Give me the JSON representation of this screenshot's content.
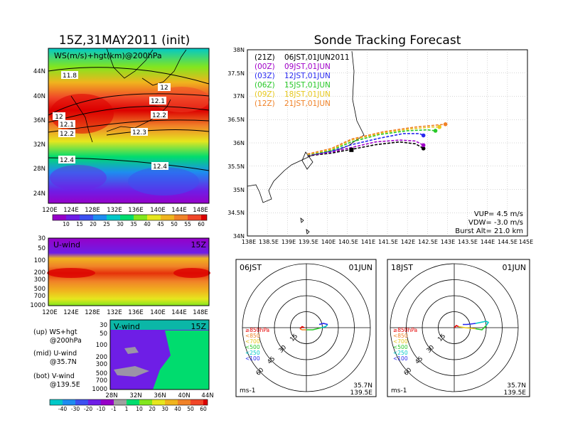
{
  "left_title": "15Z,31MAY2011 (init)",
  "right_title": "Sonde Tracking Forecast",
  "colors": {
    "c1": "#9600c8",
    "c2": "#6e1ee6",
    "c3": "#3c50f0",
    "c4": "#1e8cf0",
    "c5": "#00c8c8",
    "c6": "#00dc6e",
    "c7": "#82e61e",
    "c8": "#e6e61e",
    "c9": "#f0b41e",
    "c10": "#f08228",
    "c11": "#f04628",
    "c12": "#dc0000",
    "c13": "#b40000"
  },
  "ws_panel": {
    "label": "WS(m/s)+hgt(km)@200hPa",
    "lat_ticks": [
      "44N",
      "40N",
      "36N",
      "32N",
      "28N",
      "24N"
    ],
    "lon_ticks": [
      "120E",
      "124E",
      "128E",
      "132E",
      "136E",
      "140E",
      "144E",
      "148E"
    ],
    "height_labels": [
      "11.8",
      "12",
      "12.1",
      "12.1",
      "12.2",
      "12.2",
      "12",
      "12.3",
      "12.4",
      "12.4"
    ],
    "colorbar_ticks": [
      "10",
      "15",
      "20",
      "25",
      "30",
      "35",
      "40",
      "45",
      "50",
      "55",
      "60"
    ]
  },
  "u_panel": {
    "label": "U-wind",
    "time": "15Z",
    "p_ticks": [
      "30",
      "50",
      "100",
      "200",
      "300",
      "500",
      "700",
      "1000"
    ],
    "lon_ticks": [
      "120E",
      "124E",
      "128E",
      "132E",
      "136E",
      "140E",
      "144E",
      "148E"
    ]
  },
  "v_panel": {
    "label": "V-wind",
    "time": "15Z",
    "p_ticks": [
      "30",
      "50",
      "100",
      "200",
      "300",
      "500",
      "700",
      "1000"
    ],
    "lat_ticks": [
      "28N",
      "32N",
      "36N",
      "40N",
      "44N"
    ],
    "colorbar_ticks": [
      "-40",
      "-30",
      "-20",
      "-10",
      "-1",
      "1",
      "10",
      "20",
      "30",
      "40",
      "50",
      "60"
    ]
  },
  "legend_notes": {
    "up1": "(up) WS+hgt",
    "up2": "@200hPa",
    "mid1": "(mid) U-wind",
    "mid2": "@35.7N",
    "bot1": "(bot) V-wind",
    "bot2": "@139.5E"
  },
  "track_panel": {
    "legend": [
      {
        "z": "(21Z)",
        "jst": "06JST,01JUN2011",
        "color": "#000000"
      },
      {
        "z": "(00Z)",
        "jst": "09JST,01JUN",
        "color": "#a000c8"
      },
      {
        "z": "(03Z)",
        "jst": "12JST,01JUN",
        "color": "#2828f0"
      },
      {
        "z": "(06Z)",
        "jst": "15JST,01JUN",
        "color": "#28c828"
      },
      {
        "z": "(09Z)",
        "jst": "18JST,01JUN",
        "color": "#e6c81e"
      },
      {
        "z": "(12Z)",
        "jst": "21JST,01JUN",
        "color": "#f08228"
      }
    ],
    "lat_ticks": [
      "38N",
      "37.5N",
      "37N",
      "36.5N",
      "36N",
      "35.5N",
      "35N",
      "34.5N",
      "34N"
    ],
    "lon_ticks": [
      "138E",
      "138.5E",
      "139E",
      "139.5E",
      "140E",
      "140.5E",
      "141E",
      "141.5E",
      "142E",
      "142.5E",
      "143E",
      "143.5E",
      "144E",
      "144.5E",
      "145E"
    ],
    "info1": "VUP= 4.5 m/s",
    "info2": "VDW= -3.0 m/s",
    "info3": "Burst Alt= 21.0 km"
  },
  "chart_data": [
    {
      "type": "line",
      "title": "Sonde Tracking Forecast",
      "xlim": [
        138,
        145
      ],
      "ylim": [
        34,
        38
      ],
      "launch": {
        "lon": 140.6,
        "lat": 35.85
      },
      "series": [
        {
          "name": "(21Z) 06JST,01JUN2011",
          "lon": [
            139.5,
            140.1,
            140.6,
            141.2,
            141.8,
            142.2,
            142.4
          ],
          "lat": [
            35.72,
            35.78,
            35.86,
            35.96,
            36.02,
            35.98,
            35.88
          ]
        },
        {
          "name": "(00Z) 09JST,01JUN",
          "lon": [
            139.5,
            140.1,
            140.6,
            141.2,
            141.8,
            142.2,
            142.4
          ],
          "lat": [
            35.73,
            35.8,
            35.9,
            36.02,
            36.06,
            36.04,
            35.95
          ]
        },
        {
          "name": "(03Z) 12JST,01JUN",
          "lon": [
            139.5,
            140.1,
            140.6,
            141.3,
            141.9,
            142.3,
            142.4
          ],
          "lat": [
            35.74,
            35.82,
            35.96,
            36.1,
            36.2,
            36.2,
            36.16
          ]
        },
        {
          "name": "(06Z) 15JST,01JUN",
          "lon": [
            139.5,
            140.1,
            140.6,
            141.3,
            142.0,
            142.5,
            142.7
          ],
          "lat": [
            35.74,
            35.84,
            36.02,
            36.18,
            36.26,
            36.28,
            36.26
          ]
        },
        {
          "name": "(09Z) 18JST,01JUN",
          "lon": [
            139.5,
            140.1,
            140.6,
            141.4,
            142.1,
            142.6,
            142.8
          ],
          "lat": [
            35.75,
            35.86,
            36.06,
            36.22,
            36.3,
            36.34,
            36.34
          ]
        },
        {
          "name": "(12Z) 21JST,01JUN",
          "lon": [
            139.5,
            140.1,
            140.6,
            141.4,
            142.2,
            142.7,
            142.95
          ],
          "lat": [
            35.76,
            35.88,
            36.08,
            36.24,
            36.34,
            36.38,
            36.4
          ]
        }
      ]
    },
    {
      "type": "line",
      "title": "06JST 01JUN",
      "location1": "35.7N",
      "location2": "139.5E",
      "unit": "ms-1",
      "rings": [
        15,
        30,
        45,
        60
      ],
      "pressure_legend": [
        "≥850hPa",
        "<850",
        "<700",
        "<500",
        "<250",
        "<100"
      ],
      "series": [
        {
          "name": "≥850hPa",
          "u": [
            -2,
            -4,
            -6
          ],
          "v": [
            0,
            1,
            -1
          ]
        },
        {
          "name": "<850",
          "u": [
            -6,
            -4,
            0
          ],
          "v": [
            -1,
            -2,
            -2
          ]
        },
        {
          "name": "<500",
          "u": [
            0,
            6,
            10,
            14
          ],
          "v": [
            -2,
            -2,
            -1,
            0
          ]
        },
        {
          "name": "<250",
          "u": [
            14,
            18,
            20
          ],
          "v": [
            0,
            1,
            3
          ]
        },
        {
          "name": "<100",
          "u": [
            20,
            16,
            12
          ],
          "v": [
            3,
            4,
            3
          ]
        }
      ]
    },
    {
      "type": "line",
      "title": "18JST 01JUN",
      "location1": "35.7N",
      "location2": "139.5E",
      "unit": "ms-1",
      "rings": [
        15,
        30,
        45,
        60
      ],
      "pressure_legend": [
        "≥850hPa",
        "<850",
        "<700",
        "<500",
        "<250",
        "<100"
      ],
      "series": [
        {
          "name": "≥850hPa",
          "u": [
            0,
            2,
            4
          ],
          "v": [
            0,
            2,
            1
          ]
        },
        {
          "name": "<700",
          "u": [
            4,
            10,
            20
          ],
          "v": [
            1,
            0,
            -1
          ]
        },
        {
          "name": "<500",
          "u": [
            20,
            26,
            30
          ],
          "v": [
            -1,
            -2,
            2
          ]
        },
        {
          "name": "<250",
          "u": [
            30,
            32,
            30,
            20
          ],
          "v": [
            2,
            5,
            6,
            4
          ]
        },
        {
          "name": "<100",
          "u": [
            20,
            12,
            8
          ],
          "v": [
            4,
            3,
            3
          ]
        }
      ]
    }
  ]
}
